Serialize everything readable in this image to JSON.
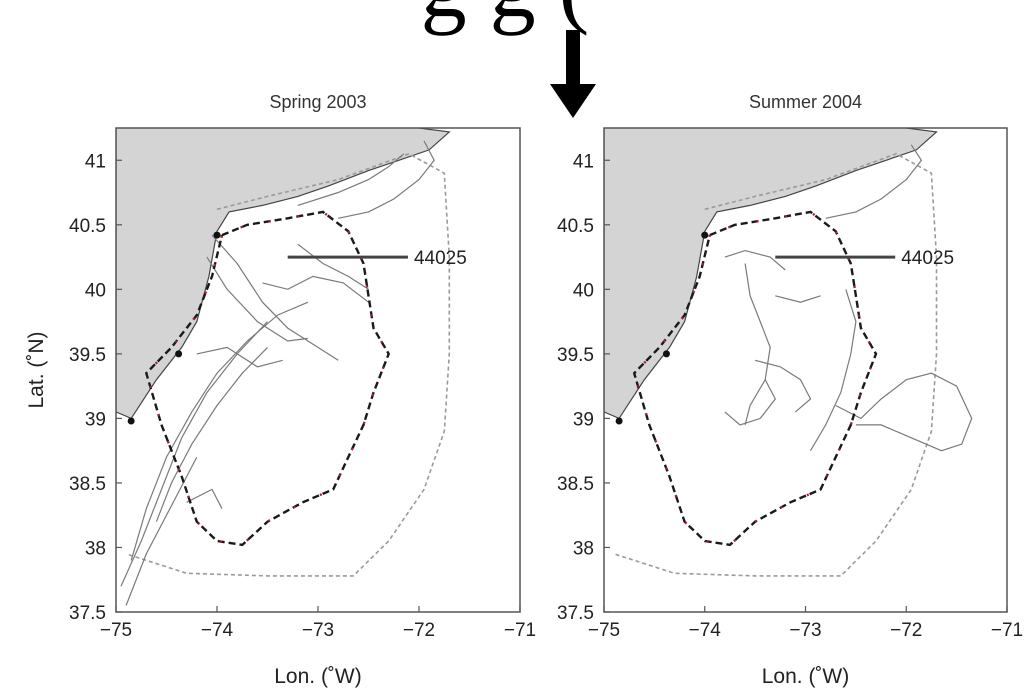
{
  "header_fragment": "g g (",
  "chart_data": [
    {
      "type": "line",
      "title": "Spring 2003",
      "xlabel": "Lon. (˚W)",
      "ylabel": "Lat. (˚N)",
      "xlim": [
        -75,
        -71
      ],
      "ylim": [
        37.5,
        41.25
      ],
      "xticks": [
        "−75",
        "−74",
        "−73",
        "−72",
        "−71"
      ],
      "yticks": [
        "37.5",
        "38",
        "38.5",
        "39",
        "39.5",
        "40",
        "40.5",
        "41"
      ],
      "annotations": [
        {
          "text": "44025",
          "x": -72.05,
          "y": 40.25
        }
      ],
      "coastline": [
        [
          -75,
          39.05
        ],
        [
          -74.85,
          39.0
        ],
        [
          -74.6,
          39.3
        ],
        [
          -74.35,
          39.55
        ],
        [
          -74.2,
          39.75
        ],
        [
          -74.08,
          40.1
        ],
        [
          -74.0,
          40.45
        ],
        [
          -73.88,
          40.6
        ],
        [
          -73.55,
          40.65
        ],
        [
          -73.2,
          40.72
        ],
        [
          -72.9,
          40.8
        ],
        [
          -72.5,
          40.92
        ],
        [
          -72.2,
          41.0
        ],
        [
          -71.9,
          41.08
        ],
        [
          -71.7,
          41.22
        ]
      ],
      "series": [
        {
          "values": [
            [
              -74.05,
              40.42
            ],
            [
              -73.8,
              40.2
            ],
            [
              -73.55,
              39.9
            ],
            [
              -73.3,
              39.7
            ],
            [
              -73.0,
              39.55
            ],
            [
              -72.8,
              39.45
            ]
          ]
        },
        {
          "values": [
            [
              -74.1,
              40.25
            ],
            [
              -73.9,
              40.0
            ],
            [
              -73.6,
              39.75
            ],
            [
              -73.3,
              39.6
            ],
            [
              -73.1,
              39.62
            ]
          ]
        },
        {
          "values": [
            [
              -74.85,
              37.9
            ],
            [
              -74.7,
              38.3
            ],
            [
              -74.5,
              38.7
            ],
            [
              -74.25,
              39.05
            ],
            [
              -74.0,
              39.35
            ],
            [
              -73.7,
              39.6
            ],
            [
              -73.4,
              39.8
            ],
            [
              -73.1,
              39.9
            ]
          ]
        },
        {
          "values": [
            [
              -74.95,
              37.7
            ],
            [
              -74.75,
              38.05
            ],
            [
              -74.55,
              38.45
            ],
            [
              -74.35,
              38.85
            ],
            [
              -74.1,
              39.2
            ],
            [
              -73.8,
              39.5
            ],
            [
              -73.5,
              39.75
            ]
          ]
        },
        {
          "values": [
            [
              -74.9,
              37.55
            ],
            [
              -74.7,
              37.95
            ],
            [
              -74.5,
              38.25
            ],
            [
              -74.3,
              38.55
            ],
            [
              -74.2,
              38.7
            ]
          ]
        },
        {
          "values": [
            [
              -74.6,
              38.2
            ],
            [
              -74.45,
              38.5
            ],
            [
              -74.25,
              38.8
            ],
            [
              -74.0,
              39.1
            ],
            [
              -73.75,
              39.35
            ],
            [
              -73.5,
              39.55
            ]
          ]
        },
        {
          "values": [
            [
              -74.3,
              38.35
            ],
            [
              -74.05,
              38.45
            ],
            [
              -73.95,
              38.3
            ]
          ]
        },
        {
          "values": [
            [
              -73.55,
              40.05
            ],
            [
              -73.3,
              40.0
            ],
            [
              -73.05,
              40.1
            ],
            [
              -72.75,
              40.05
            ],
            [
              -72.5,
              39.9
            ]
          ]
        },
        {
          "values": [
            [
              -73.2,
              40.35
            ],
            [
              -72.95,
              40.2
            ],
            [
              -72.7,
              40.1
            ],
            [
              -72.5,
              40.0
            ]
          ]
        },
        {
          "values": [
            [
              -72.8,
              40.55
            ],
            [
              -72.5,
              40.6
            ],
            [
              -72.25,
              40.7
            ],
            [
              -72.0,
              40.85
            ],
            [
              -71.85,
              41.0
            ],
            [
              -71.95,
              41.15
            ]
          ]
        },
        {
          "values": [
            [
              -73.2,
              40.65
            ],
            [
              -72.8,
              40.75
            ],
            [
              -72.5,
              40.85
            ],
            [
              -72.3,
              40.95
            ],
            [
              -72.15,
              41.05
            ]
          ]
        },
        {
          "values": [
            [
              -74.2,
              39.5
            ],
            [
              -73.9,
              39.55
            ],
            [
              -73.6,
              39.4
            ],
            [
              -73.35,
              39.45
            ]
          ]
        }
      ],
      "glider_track": [
        [
          -73.95,
          40.42
        ],
        [
          -73.7,
          40.5
        ],
        [
          -73.3,
          40.55
        ],
        [
          -72.95,
          40.6
        ],
        [
          -72.7,
          40.45
        ],
        [
          -72.55,
          40.2
        ],
        [
          -72.5,
          39.95
        ],
        [
          -72.45,
          39.7
        ],
        [
          -72.3,
          39.5
        ],
        [
          -72.45,
          39.2
        ],
        [
          -72.55,
          38.95
        ],
        [
          -72.7,
          38.7
        ],
        [
          -72.85,
          38.45
        ],
        [
          -73.15,
          38.35
        ],
        [
          -73.5,
          38.2
        ],
        [
          -73.75,
          38.02
        ],
        [
          -74.0,
          38.05
        ],
        [
          -74.2,
          38.2
        ],
        [
          -74.35,
          38.55
        ],
        [
          -74.55,
          38.95
        ],
        [
          -74.7,
          39.35
        ],
        [
          -74.45,
          39.55
        ],
        [
          -74.2,
          39.8
        ],
        [
          -74.05,
          40.1
        ],
        [
          -73.95,
          40.42
        ]
      ],
      "boundary": [
        [
          -74.0,
          40.62
        ],
        [
          -73.5,
          40.72
        ],
        [
          -72.8,
          40.85
        ],
        [
          -72.1,
          41.05
        ],
        [
          -71.75,
          40.9
        ],
        [
          -71.7,
          40.25
        ],
        [
          -71.7,
          39.5
        ],
        [
          -71.75,
          38.9
        ],
        [
          -71.95,
          38.45
        ],
        [
          -72.3,
          38.05
        ],
        [
          -72.65,
          37.78
        ],
        [
          -73.5,
          37.78
        ],
        [
          -74.3,
          37.8
        ],
        [
          -74.9,
          37.95
        ]
      ]
    },
    {
      "type": "line",
      "title": "Summer 2004",
      "xlabel": "Lon. (˚W)",
      "ylabel": "",
      "xlim": [
        -75,
        -71
      ],
      "ylim": [
        37.5,
        41.25
      ],
      "xticks": [
        "−75",
        "−74",
        "−73",
        "−72",
        "−71"
      ],
      "yticks": [
        "37.5",
        "38",
        "38.5",
        "39",
        "39.5",
        "40",
        "40.5",
        "41"
      ],
      "annotations": [
        {
          "text": "44025",
          "x": -72.05,
          "y": 40.25
        }
      ],
      "coastline": [
        [
          -75,
          39.05
        ],
        [
          -74.85,
          39.0
        ],
        [
          -74.6,
          39.3
        ],
        [
          -74.35,
          39.55
        ],
        [
          -74.2,
          39.75
        ],
        [
          -74.08,
          40.1
        ],
        [
          -74.0,
          40.45
        ],
        [
          -73.88,
          40.6
        ],
        [
          -73.55,
          40.65
        ],
        [
          -73.2,
          40.72
        ],
        [
          -72.9,
          40.8
        ],
        [
          -72.5,
          40.92
        ],
        [
          -72.2,
          41.0
        ],
        [
          -71.9,
          41.08
        ],
        [
          -71.7,
          41.22
        ]
      ],
      "series": [
        {
          "values": [
            [
              -73.6,
              40.2
            ],
            [
              -73.55,
              39.95
            ],
            [
              -73.45,
              39.75
            ],
            [
              -73.35,
              39.55
            ],
            [
              -73.4,
              39.3
            ],
            [
              -73.55,
              39.1
            ],
            [
              -73.6,
              38.95
            ]
          ]
        },
        {
          "values": [
            [
              -73.5,
              39.45
            ],
            [
              -73.25,
              39.4
            ],
            [
              -73.05,
              39.3
            ],
            [
              -72.95,
              39.15
            ],
            [
              -73.1,
              39.05
            ]
          ]
        },
        {
          "values": [
            [
              -73.4,
              39.3
            ],
            [
              -73.3,
              39.15
            ],
            [
              -73.45,
              39.0
            ],
            [
              -73.65,
              38.95
            ],
            [
              -73.8,
              39.05
            ]
          ]
        },
        {
          "values": [
            [
              -72.6,
              40.0
            ],
            [
              -72.5,
              39.75
            ],
            [
              -72.55,
              39.5
            ],
            [
              -72.65,
              39.2
            ],
            [
              -72.8,
              38.95
            ],
            [
              -72.95,
              38.75
            ]
          ]
        },
        {
          "values": [
            [
              -72.7,
              39.1
            ],
            [
              -72.45,
              39.0
            ],
            [
              -72.25,
              39.15
            ],
            [
              -72.0,
              39.3
            ],
            [
              -71.75,
              39.35
            ],
            [
              -71.5,
              39.25
            ],
            [
              -71.35,
              39.0
            ],
            [
              -71.45,
              38.8
            ],
            [
              -71.65,
              38.75
            ],
            [
              -71.95,
              38.85
            ],
            [
              -72.25,
              38.95
            ],
            [
              -72.5,
              38.95
            ]
          ]
        },
        {
          "values": [
            [
              -73.3,
              39.95
            ],
            [
              -73.05,
              39.9
            ],
            [
              -72.85,
              39.95
            ]
          ]
        },
        {
          "values": [
            [
              -73.8,
              40.25
            ],
            [
              -73.6,
              40.3
            ],
            [
              -73.35,
              40.25
            ],
            [
              -73.2,
              40.15
            ]
          ]
        },
        {
          "values": [
            [
              -72.8,
              40.55
            ],
            [
              -72.5,
              40.6
            ],
            [
              -72.25,
              40.7
            ],
            [
              -72.0,
              40.85
            ],
            [
              -71.85,
              41.0
            ],
            [
              -71.95,
              41.12
            ]
          ]
        }
      ],
      "glider_track": [
        [
          -73.95,
          40.42
        ],
        [
          -73.7,
          40.5
        ],
        [
          -73.3,
          40.55
        ],
        [
          -72.95,
          40.6
        ],
        [
          -72.7,
          40.45
        ],
        [
          -72.55,
          40.2
        ],
        [
          -72.5,
          39.95
        ],
        [
          -72.45,
          39.7
        ],
        [
          -72.3,
          39.5
        ],
        [
          -72.45,
          39.2
        ],
        [
          -72.55,
          38.95
        ],
        [
          -72.7,
          38.7
        ],
        [
          -72.85,
          38.45
        ],
        [
          -73.15,
          38.35
        ],
        [
          -73.5,
          38.2
        ],
        [
          -73.75,
          38.02
        ],
        [
          -74.0,
          38.05
        ],
        [
          -74.2,
          38.2
        ],
        [
          -74.35,
          38.55
        ],
        [
          -74.55,
          38.95
        ],
        [
          -74.7,
          39.35
        ],
        [
          -74.45,
          39.55
        ],
        [
          -74.2,
          39.8
        ],
        [
          -74.05,
          40.1
        ],
        [
          -73.95,
          40.42
        ]
      ],
      "boundary": [
        [
          -74.0,
          40.62
        ],
        [
          -73.5,
          40.72
        ],
        [
          -72.8,
          40.85
        ],
        [
          -72.1,
          41.05
        ],
        [
          -71.75,
          40.9
        ],
        [
          -71.7,
          40.25
        ],
        [
          -71.7,
          39.5
        ],
        [
          -71.75,
          38.9
        ],
        [
          -71.95,
          38.45
        ],
        [
          -72.3,
          38.05
        ],
        [
          -72.65,
          37.78
        ],
        [
          -73.5,
          37.78
        ],
        [
          -74.3,
          37.8
        ],
        [
          -74.9,
          37.95
        ]
      ]
    }
  ],
  "colors": {
    "land": "#d4d4d4",
    "track": "#1a1a1a",
    "track_accent": "#b3202a",
    "drifter": "#7a7a7a",
    "boundary": "#9a9a9a",
    "axis": "#555555"
  }
}
